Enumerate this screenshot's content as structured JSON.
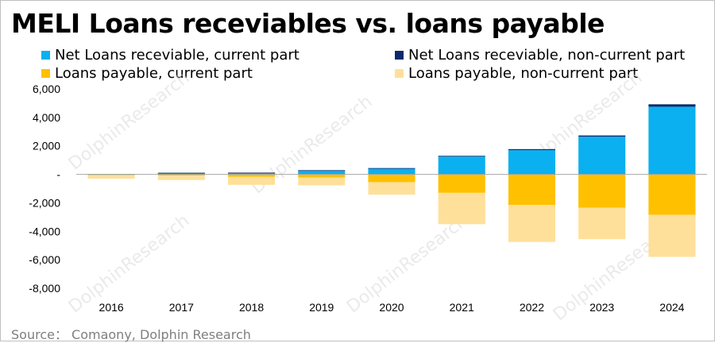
{
  "title": "MELI Loans receviables vs. loans payable",
  "source": "Source： Comaony, Dolphin Research",
  "watermark": "DolphinResearch",
  "colors": {
    "net_current": "#0ab0f0",
    "net_noncurrent": "#0c2a6b",
    "payable_current": "#ffc000",
    "payable_noncurrent": "#ffe09a"
  },
  "legend": [
    {
      "label": "Net Loans receviable, current part",
      "color": "#0ab0f0"
    },
    {
      "label": "Net Loans receviable, non-current part",
      "color": "#0c2a6b"
    },
    {
      "label": "Loans payable, current part",
      "color": "#ffc000"
    },
    {
      "label": "Loans payable, non-current part",
      "color": "#ffe09a"
    }
  ],
  "chart_data": {
    "type": "bar",
    "stacked": true,
    "title": "MELI Loans receviables vs. loans payable",
    "categories": [
      "2016",
      "2017",
      "2018",
      "2019",
      "2020",
      "2021",
      "2022",
      "2023",
      "2024"
    ],
    "ylim": [
      -8000,
      6000
    ],
    "yticks": [
      6000,
      4000,
      2000,
      0,
      -2000,
      -4000,
      -6000,
      -8000
    ],
    "ytick_labels": [
      "6,000",
      "4,000",
      "2,000",
      "-",
      "-2,000",
      "-4,000",
      "-6,000",
      "-8,000"
    ],
    "grid": false,
    "legend_position": "top",
    "series": [
      {
        "name": "Net Loans receviable, current part",
        "values": [
          30,
          100,
          110,
          250,
          400,
          1250,
          1700,
          2650,
          4750
        ]
      },
      {
        "name": "Net Loans receviable, non-current part",
        "values": [
          0,
          10,
          10,
          40,
          40,
          50,
          70,
          80,
          170
        ]
      },
      {
        "name": "Loans payable, current part",
        "values": [
          -60,
          -80,
          -180,
          -220,
          -550,
          -1300,
          -2150,
          -2350,
          -2850
        ]
      },
      {
        "name": "Loans payable, non-current part",
        "values": [
          -250,
          -320,
          -560,
          -550,
          -880,
          -2200,
          -2600,
          -2200,
          -2950
        ]
      }
    ]
  }
}
